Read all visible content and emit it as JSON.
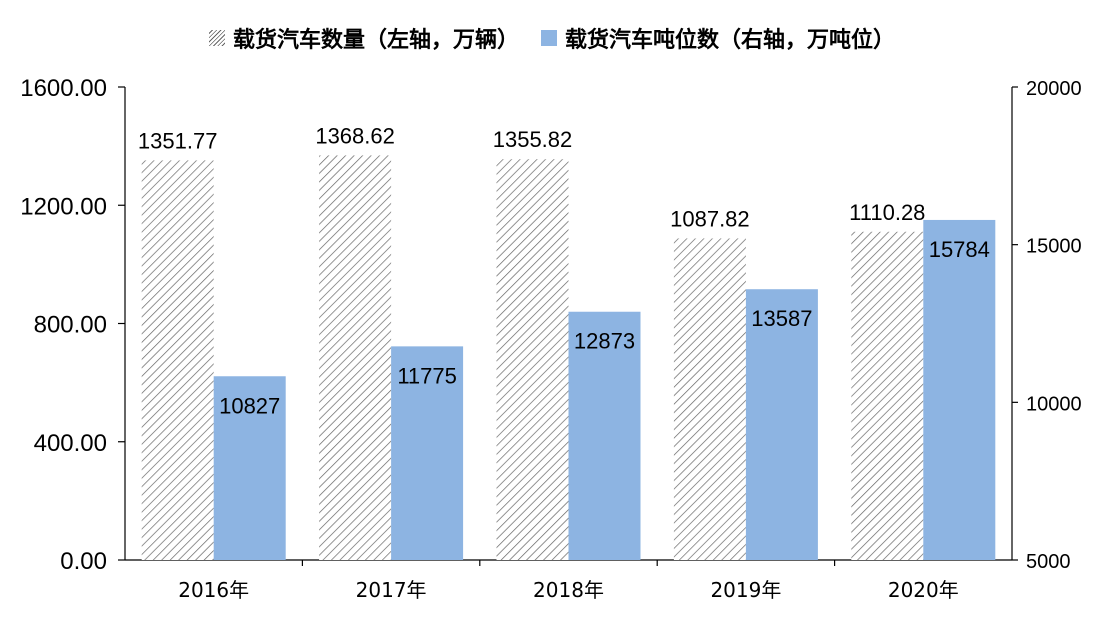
{
  "colors": {
    "accent": "#8DB4E2",
    "hatch": "#666666",
    "axis": "#000000"
  },
  "chart_data": {
    "type": "bar",
    "categories": [
      "2016年",
      "2017年",
      "2018年",
      "2019年",
      "2020年"
    ],
    "series": [
      {
        "name": "载货汽车数量（左轴，万辆）",
        "axis": "left",
        "fill": "hatched",
        "values": [
          1351.77,
          1368.62,
          1355.82,
          1087.82,
          1110.28
        ],
        "labels": [
          "1351.77",
          "1368.62",
          "1355.82",
          "1087.82",
          "1110.28"
        ]
      },
      {
        "name": "载货汽车吨位数（右轴，万吨位）",
        "axis": "right",
        "fill": "#8DB4E2",
        "values": [
          10827,
          11775,
          12873,
          13587,
          15784
        ],
        "labels": [
          "10827",
          "11775",
          "12873",
          "13587",
          "15784"
        ]
      }
    ],
    "y_left": {
      "ylim": [
        0,
        1600
      ],
      "ticks": [
        "0.00",
        "400.00",
        "800.00",
        "1200.00",
        "1600.00"
      ]
    },
    "y_right": {
      "ylim": [
        5000,
        20000
      ],
      "ticks": [
        "5000",
        "10000",
        "15000",
        "20000"
      ]
    },
    "grid": false,
    "legend_position": "top-center"
  }
}
